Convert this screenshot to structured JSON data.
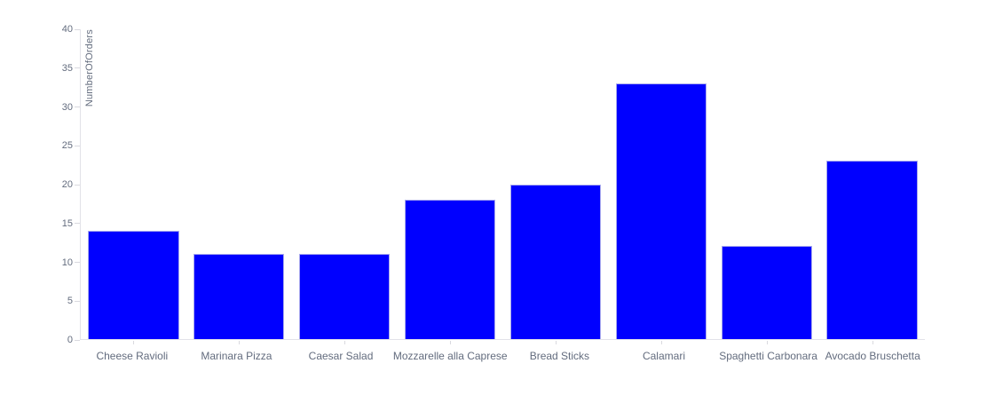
{
  "chart_data": {
    "type": "bar",
    "title": "",
    "xlabel": "",
    "ylabel": "NumberOfOrders",
    "categories": [
      "Cheese Ravioli",
      "Marinara Pizza",
      "Caesar Salad",
      "Mozzarelle alla Caprese",
      "Bread Sticks",
      "Calamari",
      "Spaghetti Carbonara",
      "Avocado Bruschetta"
    ],
    "values": [
      14,
      11,
      11,
      18,
      20,
      33,
      12,
      23
    ],
    "ylim": [
      0,
      40
    ],
    "ytick_step": 5,
    "ytick_labels": [
      "0",
      "5",
      "10",
      "15",
      "20",
      "25",
      "30",
      "35",
      "40"
    ],
    "grid": false,
    "legend_position": "none",
    "colors": {
      "bar": "#0000ff",
      "bar_border": "#a9aaee",
      "axis": "#e2e2e8",
      "tick": "#d9d9df",
      "text": "#636c7e"
    }
  }
}
